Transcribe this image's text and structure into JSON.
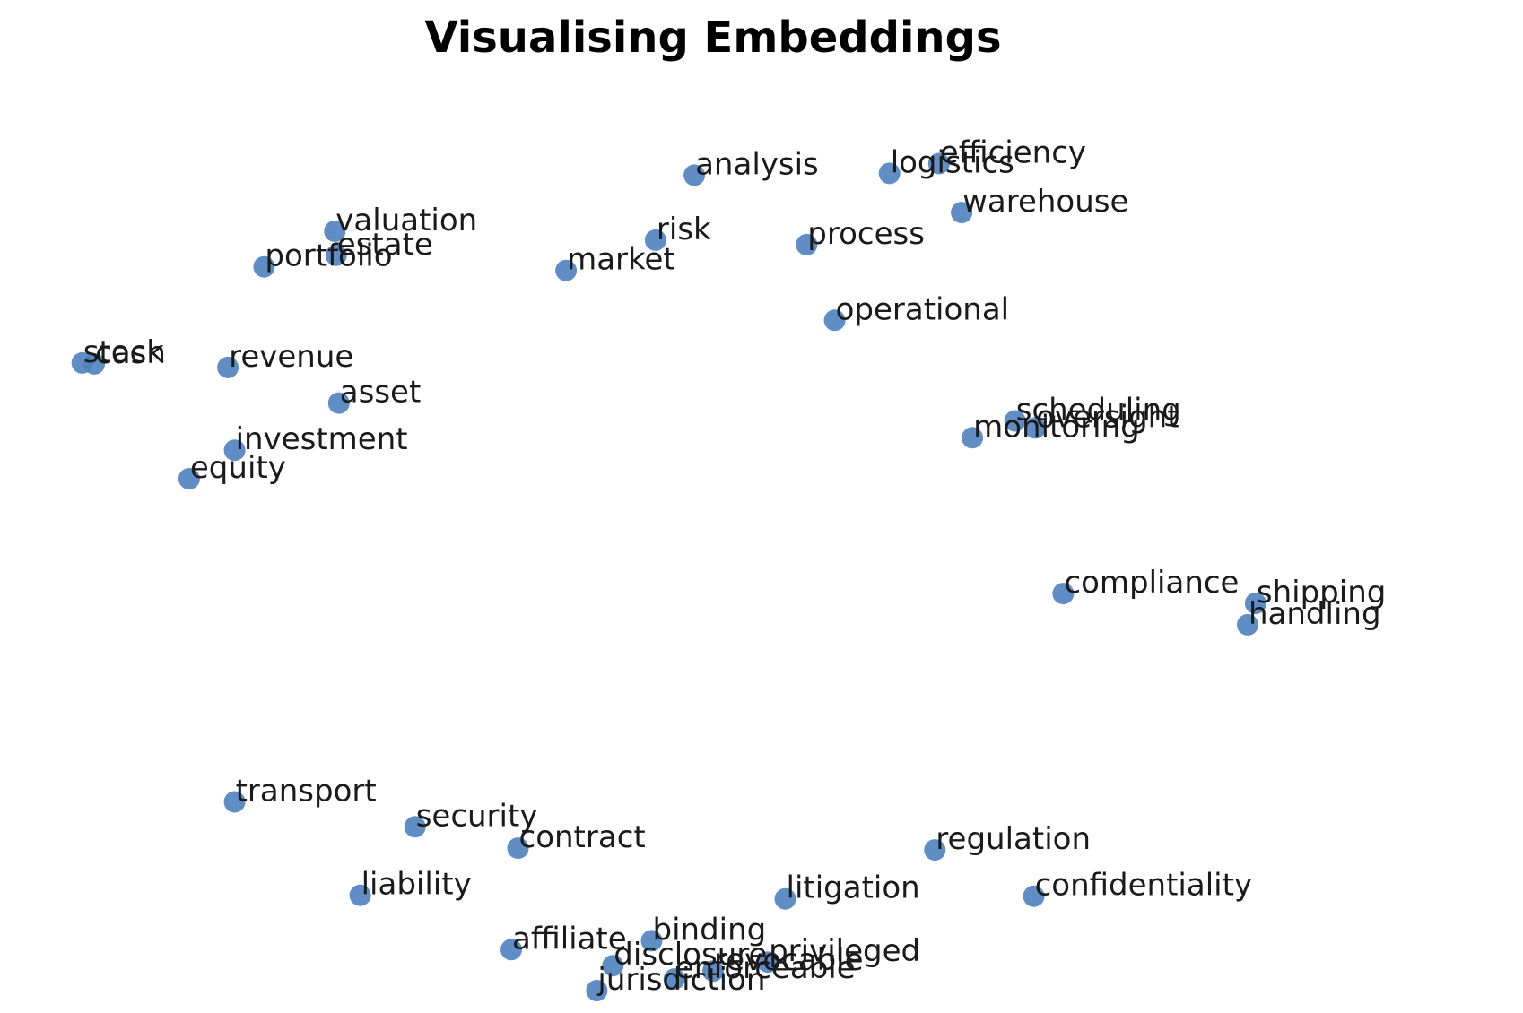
{
  "chart_data": {
    "type": "scatter",
    "title": "Visualising Embeddings",
    "xlabel": "",
    "ylabel": "",
    "axes_visible": false,
    "grid": false,
    "xlim": [
      0,
      100
    ],
    "ylim": [
      0,
      100
    ],
    "point_color": "#4f81bd",
    "points": [
      {
        "label": "analysis",
        "x": 48.6,
        "y": 91.6
      },
      {
        "label": "efficiency",
        "x": 66.9,
        "y": 92.9
      },
      {
        "label": "logistics",
        "x": 63.2,
        "y": 91.8
      },
      {
        "label": "warehouse",
        "x": 68.6,
        "y": 87.4
      },
      {
        "label": "valuation",
        "x": 21.7,
        "y": 85.3
      },
      {
        "label": "estate",
        "x": 21.8,
        "y": 82.6
      },
      {
        "label": "portfolio",
        "x": 16.4,
        "y": 81.3
      },
      {
        "label": "risk",
        "x": 45.7,
        "y": 84.3
      },
      {
        "label": "market",
        "x": 39.0,
        "y": 80.9
      },
      {
        "label": "process",
        "x": 57.0,
        "y": 83.8
      },
      {
        "label": "operational",
        "x": 59.1,
        "y": 75.3
      },
      {
        "label": "stock",
        "x": 2.8,
        "y": 70.5
      },
      {
        "label": "cash",
        "x": 3.7,
        "y": 70.4
      },
      {
        "label": "revenue",
        "x": 13.7,
        "y": 70.0
      },
      {
        "label": "asset",
        "x": 22.0,
        "y": 66.0
      },
      {
        "label": "scheduling",
        "x": 72.6,
        "y": 64.0
      },
      {
        "label": "oversight",
        "x": 74.1,
        "y": 63.2
      },
      {
        "label": "monitoring",
        "x": 69.4,
        "y": 62.1
      },
      {
        "label": "investment",
        "x": 14.2,
        "y": 60.7
      },
      {
        "label": "equity",
        "x": 10.8,
        "y": 57.5
      },
      {
        "label": "compliance",
        "x": 76.2,
        "y": 44.6
      },
      {
        "label": "shipping",
        "x": 90.6,
        "y": 43.5
      },
      {
        "label": "handling",
        "x": 90.0,
        "y": 41.1
      },
      {
        "label": "transport",
        "x": 14.2,
        "y": 21.2
      },
      {
        "label": "security",
        "x": 27.7,
        "y": 18.4
      },
      {
        "label": "contract",
        "x": 35.4,
        "y": 16.0
      },
      {
        "label": "regulation",
        "x": 66.6,
        "y": 15.8
      },
      {
        "label": "liability",
        "x": 23.6,
        "y": 10.7
      },
      {
        "label": "litigation",
        "x": 55.4,
        "y": 10.3
      },
      {
        "label": "confidentiality",
        "x": 74.0,
        "y": 10.6
      },
      {
        "label": "affiliate",
        "x": 34.9,
        "y": 4.6
      },
      {
        "label": "binding",
        "x": 45.4,
        "y": 5.6
      },
      {
        "label": "disclosure",
        "x": 42.5,
        "y": 2.8
      },
      {
        "label": "privileged",
        "x": 54.1,
        "y": 3.2
      },
      {
        "label": "revocable",
        "x": 50.0,
        "y": 2.2
      },
      {
        "label": "enforceable",
        "x": 47.1,
        "y": 1.3
      },
      {
        "label": "jurisdiction",
        "x": 41.3,
        "y": 0.0
      }
    ]
  }
}
